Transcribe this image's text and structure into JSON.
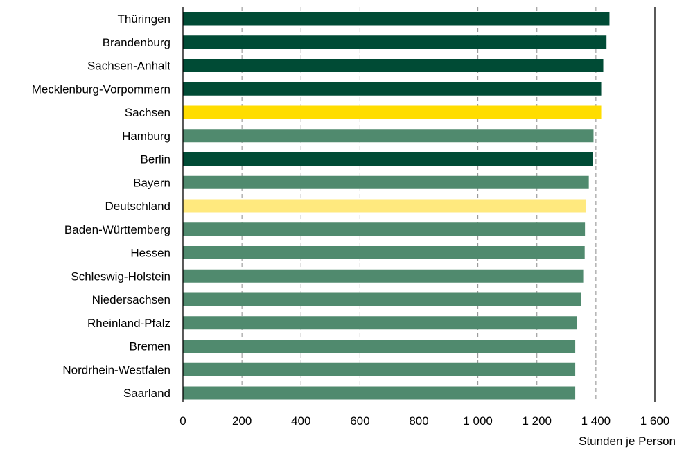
{
  "chart_data": {
    "type": "bar",
    "orientation": "horizontal",
    "categories": [
      "Thüringen",
      "Brandenburg",
      "Sachsen-Anhalt",
      "Mecklenburg-Vorpommern",
      "Sachsen",
      "Hamburg",
      "Berlin",
      "Bayern",
      "Deutschland",
      "Baden-Württemberg",
      "Hessen",
      "Schleswig-Holstein",
      "Niedersachsen",
      "Rheinland-Pfalz",
      "Bremen",
      "Nordrhein-Westfalen",
      "Saarland"
    ],
    "values": [
      1446,
      1436,
      1425,
      1418,
      1418,
      1392,
      1390,
      1376,
      1365,
      1363,
      1362,
      1357,
      1349,
      1336,
      1330,
      1330,
      1330
    ],
    "bar_colors": [
      "#004b35",
      "#004b35",
      "#004b35",
      "#004b35",
      "#ffdd00",
      "#508a6e",
      "#004b35",
      "#508a6e",
      "#ffe97e",
      "#508a6e",
      "#508a6e",
      "#508a6e",
      "#508a6e",
      "#508a6e",
      "#508a6e",
      "#508a6e",
      "#508a6e"
    ],
    "xlim": [
      0,
      1600
    ],
    "xticks": [
      0,
      200,
      400,
      600,
      800,
      1000,
      1200,
      1400,
      1600
    ],
    "xtick_labels": [
      "0",
      "200",
      "400",
      "600",
      "800",
      "1 000",
      "1 200",
      "1 400",
      "1 600"
    ],
    "xlabel": "Stunden je Person",
    "title": "",
    "grid": "vertical dashed",
    "legend": "none"
  }
}
